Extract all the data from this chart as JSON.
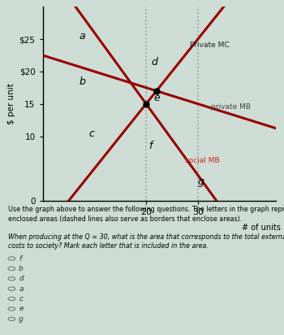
{
  "ylabel": "$ per unit",
  "xlabel": "# of units",
  "yticks": [
    0,
    10,
    15,
    20,
    25
  ],
  "ytick_labels": [
    "0",
    "10",
    "15",
    "$20",
    "$25"
  ],
  "xticks": [
    20,
    30
  ],
  "xlim": [
    0,
    45
  ],
  "ylim": [
    0,
    30
  ],
  "q20": 20,
  "q30": 30,
  "line_color": "#990000",
  "dashed_color": "#999999",
  "social_MB_label": "social MB",
  "private_MB_label": "private MB",
  "private_MC_label": "Private MC",
  "social_MB_color": "#cc2222",
  "private_MB_color": "#444444",
  "MC_color": "#333333",
  "bg_color": "#cdddd5",
  "checkbox_labels": [
    "f",
    "b",
    "d",
    "a",
    "c",
    "e",
    "g"
  ],
  "private_MC_slope": 1.0,
  "private_MC_intercept": -5,
  "social_MB_slope": -1.1,
  "social_MB_intercept": 37,
  "private_MB_slope": -0.25,
  "private_MB_intercept": 22.5
}
